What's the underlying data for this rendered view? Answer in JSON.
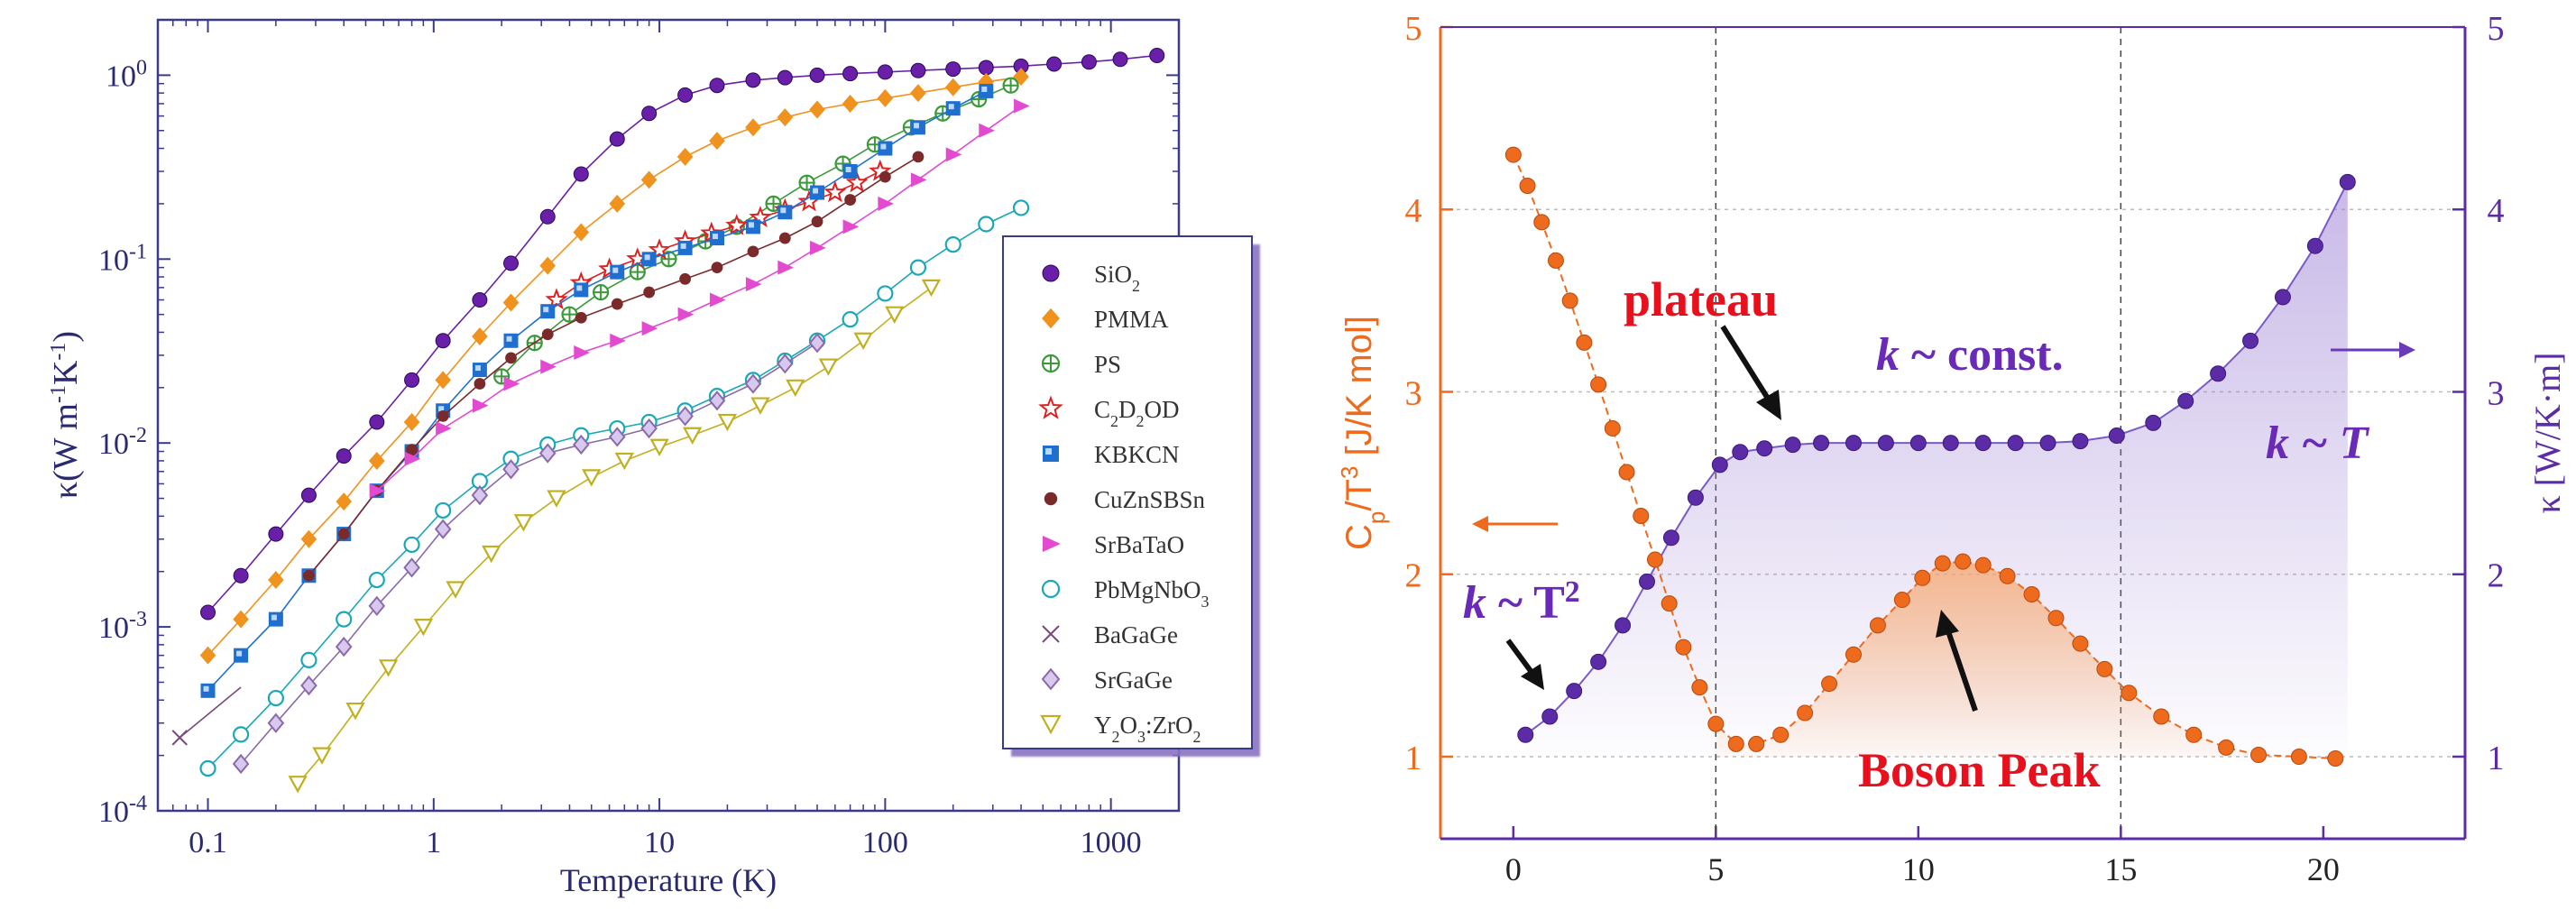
{
  "chart_data": [
    {
      "type": "scatter",
      "xlabel": "Temperature (K)",
      "ylabel": "κ(W m⁻¹K⁻¹)",
      "xscale": "log",
      "yscale": "log",
      "xlim": [
        0.06,
        2000
      ],
      "ylim": [
        0.0001,
        2
      ],
      "xticks": [
        "0.1",
        "1",
        "10",
        "100",
        "1000"
      ],
      "yticks": [
        "10⁻⁴",
        "10⁻³",
        "10⁻²",
        "10⁻¹",
        "10⁰"
      ],
      "legend_position": "right",
      "series": [
        {
          "name": "SiO2",
          "sub": "2",
          "base": "SiO",
          "color": "#6a1fa8",
          "marker": "circle-filled",
          "x": [
            0.1,
            0.14,
            0.2,
            0.28,
            0.4,
            0.56,
            0.8,
            1.1,
            1.6,
            2.2,
            3.2,
            4.5,
            6.5,
            9,
            13,
            18,
            26,
            36,
            50,
            70,
            100,
            140,
            200,
            280,
            400,
            560,
            800,
            1100,
            1600
          ],
          "y": [
            0.0012,
            0.0019,
            0.0032,
            0.0052,
            0.0085,
            0.013,
            0.022,
            0.036,
            0.06,
            0.095,
            0.17,
            0.29,
            0.45,
            0.62,
            0.78,
            0.88,
            0.94,
            0.97,
            1.0,
            1.02,
            1.04,
            1.06,
            1.08,
            1.1,
            1.12,
            1.15,
            1.18,
            1.22,
            1.28
          ]
        },
        {
          "name": "PMMA",
          "color": "#f0921e",
          "marker": "diamond-filled",
          "x": [
            0.1,
            0.14,
            0.2,
            0.28,
            0.4,
            0.56,
            0.8,
            1.1,
            1.6,
            2.2,
            3.2,
            4.5,
            6.5,
            9,
            13,
            18,
            26,
            36,
            50,
            70,
            100,
            140,
            200,
            280,
            400
          ],
          "y": [
            0.0007,
            0.0011,
            0.0018,
            0.003,
            0.0048,
            0.008,
            0.013,
            0.022,
            0.038,
            0.058,
            0.092,
            0.14,
            0.2,
            0.27,
            0.36,
            0.44,
            0.52,
            0.59,
            0.65,
            0.7,
            0.75,
            0.8,
            0.86,
            0.92,
            0.98
          ]
        },
        {
          "name": "PS",
          "color": "#3a9a3a",
          "marker": "circle-cross",
          "x": [
            2.0,
            2.8,
            4,
            5.5,
            8,
            11,
            16,
            22,
            32,
            45,
            65,
            90,
            130,
            180,
            260,
            360
          ],
          "y": [
            0.023,
            0.035,
            0.05,
            0.066,
            0.085,
            0.1,
            0.125,
            0.15,
            0.2,
            0.26,
            0.33,
            0.42,
            0.52,
            0.62,
            0.74,
            0.88
          ]
        },
        {
          "name": "C2D2OD",
          "base": "C",
          "sub": "2",
          "base2": "D",
          "sub2": "2",
          "base3": "OD",
          "color": "#e02020",
          "marker": "star",
          "x": [
            3.5,
            4.5,
            6,
            8,
            10,
            13,
            17,
            22,
            28,
            36,
            46,
            60,
            75,
            95
          ],
          "y": [
            0.06,
            0.074,
            0.088,
            0.1,
            0.112,
            0.125,
            0.138,
            0.152,
            0.168,
            0.185,
            0.205,
            0.23,
            0.26,
            0.3
          ]
        },
        {
          "name": "KBKCN",
          "color": "#1f6fd0",
          "marker": "square-filled",
          "x": [
            0.1,
            0.14,
            0.2,
            0.28,
            0.4,
            0.56,
            0.8,
            1.1,
            1.6,
            2.2,
            3.2,
            4.5,
            6.5,
            9,
            13,
            18,
            26,
            36,
            50,
            70,
            100,
            140,
            200,
            280
          ],
          "y": [
            0.00045,
            0.0007,
            0.0011,
            0.0019,
            0.0032,
            0.0055,
            0.009,
            0.015,
            0.025,
            0.036,
            0.052,
            0.068,
            0.085,
            0.1,
            0.115,
            0.13,
            0.15,
            0.18,
            0.23,
            0.3,
            0.4,
            0.52,
            0.66,
            0.82
          ]
        },
        {
          "name": "CuZnSBSn",
          "color": "#7a2a2a",
          "marker": "circle-filled-small",
          "x": [
            0.28,
            0.4,
            0.56,
            0.8,
            1.1,
            1.6,
            2.2,
            3.2,
            4.5,
            6.5,
            9,
            13,
            18,
            26,
            36,
            50,
            70,
            100,
            140
          ],
          "y": [
            0.0019,
            0.0032,
            0.0055,
            0.0092,
            0.014,
            0.021,
            0.029,
            0.039,
            0.048,
            0.057,
            0.066,
            0.078,
            0.09,
            0.11,
            0.13,
            0.16,
            0.21,
            0.28,
            0.36
          ]
        },
        {
          "name": "SrBaTaO",
          "color": "#e24ad0",
          "marker": "triangle-right",
          "x": [
            0.56,
            0.8,
            1.1,
            1.6,
            2.2,
            3.2,
            4.5,
            6.5,
            9,
            13,
            18,
            26,
            36,
            50,
            70,
            100,
            140,
            200,
            280,
            400
          ],
          "y": [
            0.0055,
            0.0082,
            0.012,
            0.016,
            0.021,
            0.026,
            0.031,
            0.036,
            0.042,
            0.05,
            0.06,
            0.073,
            0.09,
            0.115,
            0.15,
            0.2,
            0.27,
            0.37,
            0.5,
            0.68
          ]
        },
        {
          "name": "PbMgNbO3",
          "base": "PbMgNbO",
          "sub": "3",
          "color": "#1aa8b8",
          "marker": "circle-open",
          "x": [
            0.1,
            0.14,
            0.2,
            0.28,
            0.4,
            0.56,
            0.8,
            1.1,
            1.6,
            2.2,
            3.2,
            4.5,
            6.5,
            9,
            13,
            18,
            26,
            36,
            50,
            70,
            100,
            140,
            200,
            280,
            400
          ],
          "y": [
            0.00017,
            0.00026,
            0.00041,
            0.00066,
            0.0011,
            0.0018,
            0.0028,
            0.0043,
            0.0062,
            0.0082,
            0.0098,
            0.011,
            0.012,
            0.013,
            0.015,
            0.018,
            0.022,
            0.028,
            0.036,
            0.047,
            0.065,
            0.09,
            0.12,
            0.155,
            0.19
          ]
        },
        {
          "name": "BaGaGe",
          "color": "#7a4a7a",
          "marker": "cross",
          "x": [
            0.075
          ],
          "y": [
            0.00025
          ]
        },
        {
          "name": "SrGaGe",
          "color": "#8a6aaa",
          "marker": "diamond-open",
          "x": [
            0.14,
            0.2,
            0.28,
            0.4,
            0.56,
            0.8,
            1.1,
            1.6,
            2.2,
            3.2,
            4.5,
            6.5,
            9,
            13,
            18,
            26,
            36,
            50
          ],
          "y": [
            0.00018,
            0.0003,
            0.00048,
            0.00078,
            0.0013,
            0.0021,
            0.0034,
            0.0052,
            0.0072,
            0.0088,
            0.0098,
            0.0108,
            0.012,
            0.014,
            0.017,
            0.021,
            0.027,
            0.035
          ]
        },
        {
          "name": "Y2O3:ZrO2",
          "base": "Y",
          "sub": "2",
          "base2": "O",
          "sub2": "3",
          "base3": ":ZrO",
          "sub3": "2",
          "color": "#c0b020",
          "marker": "triangle-down",
          "x": [
            0.25,
            0.32,
            0.45,
            0.63,
            0.9,
            1.25,
            1.8,
            2.5,
            3.5,
            5,
            7,
            10,
            14,
            20,
            28,
            40,
            56,
            80,
            110,
            160
          ],
          "y": [
            0.00014,
            0.0002,
            0.00035,
            0.0006,
            0.001,
            0.0016,
            0.0025,
            0.0037,
            0.005,
            0.0065,
            0.008,
            0.0095,
            0.011,
            0.013,
            0.016,
            0.02,
            0.026,
            0.036,
            0.05,
            0.07
          ]
        }
      ]
    },
    {
      "type": "line",
      "x_ticks": [
        "0",
        "5",
        "10",
        "15",
        "20"
      ],
      "xlim": [
        -1.8,
        23.5
      ],
      "ylim_left": [
        0.55,
        5
      ],
      "ylim_right": [
        0.55,
        5
      ],
      "left_ticks": [
        "1",
        "2",
        "3",
        "4",
        "5"
      ],
      "right_ticks": [
        "1",
        "2",
        "3",
        "4",
        "5"
      ],
      "ylabel_left": "Cp/T3 [J/K mol]",
      "ylabel_left_parts": {
        "a": "C",
        "b": "p",
        "c": "/T",
        "d": "3",
        "e": " [J/K mol]"
      },
      "ylabel_right": "κ [W/K·m]",
      "vlines": [
        5,
        15
      ],
      "grid": "horizontal dotted",
      "series": [
        {
          "name": "Cp/T3",
          "axis": "left",
          "color": "#ee6a1c",
          "fill": "#f7a56a",
          "x": [
            0,
            0.35,
            0.7,
            1.05,
            1.4,
            1.75,
            2.1,
            2.45,
            2.8,
            3.15,
            3.5,
            3.85,
            4.2,
            4.6,
            5.0,
            5.5,
            6.0,
            6.6,
            7.2,
            7.8,
            8.4,
            9.0,
            9.6,
            10.1,
            10.6,
            11.1,
            11.6,
            12.2,
            12.8,
            13.4,
            14.0,
            14.6,
            15.2,
            16.0,
            16.8,
            17.6,
            18.4,
            19.4,
            20.3
          ],
          "y": [
            4.3,
            4.13,
            3.93,
            3.72,
            3.5,
            3.27,
            3.04,
            2.8,
            2.56,
            2.32,
            2.08,
            1.84,
            1.6,
            1.38,
            1.18,
            1.07,
            1.07,
            1.12,
            1.24,
            1.4,
            1.56,
            1.72,
            1.86,
            1.98,
            2.06,
            2.07,
            2.05,
            1.99,
            1.89,
            1.76,
            1.62,
            1.48,
            1.35,
            1.22,
            1.12,
            1.05,
            1.01,
            1.0,
            0.99
          ]
        },
        {
          "name": "kappa",
          "axis": "right",
          "color": "#5b2ca6",
          "fill": "#9c80d4",
          "x": [
            0.3,
            0.9,
            1.5,
            2.1,
            2.7,
            3.3,
            3.9,
            4.5,
            5.1,
            5.6,
            6.2,
            6.9,
            7.6,
            8.4,
            9.2,
            10.0,
            10.8,
            11.6,
            12.4,
            13.2,
            14.0,
            14.9,
            15.8,
            16.6,
            17.4,
            18.2,
            19.0,
            19.8,
            20.6
          ],
          "y": [
            1.12,
            1.22,
            1.36,
            1.52,
            1.72,
            1.96,
            2.2,
            2.42,
            2.6,
            2.67,
            2.69,
            2.71,
            2.72,
            2.72,
            2.72,
            2.72,
            2.72,
            2.72,
            2.72,
            2.72,
            2.73,
            2.76,
            2.83,
            2.95,
            3.1,
            3.28,
            3.52,
            3.8,
            4.15
          ]
        }
      ],
      "annotations": {
        "plateau": "plateau",
        "kconst_k": "k",
        "kconst_rest": " ~ const.",
        "kT_k": "k",
        "kT_rest": " ~ T",
        "kT2_k": "k",
        "kT2_rest": " ~ T",
        "kT2_sup": "2",
        "boson": "Boson Peak"
      }
    }
  ]
}
